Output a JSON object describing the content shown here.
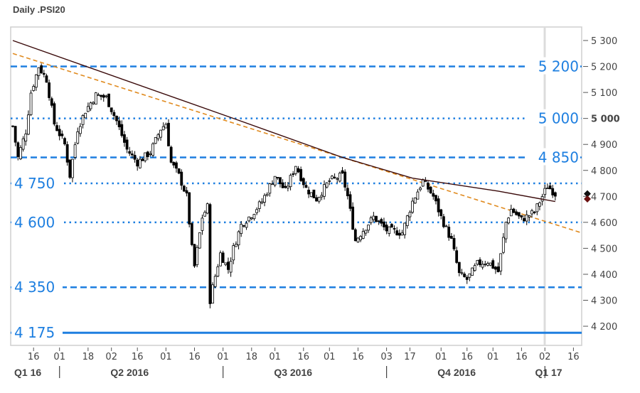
{
  "title": "Daily .PSI20",
  "chart_data": {
    "type": "candlestick",
    "title": "Daily .PSI20",
    "ylim": [
      4130,
      5340
    ],
    "y_ticks": [
      "5 300",
      "5 200",
      "5 100",
      "5 000",
      "4 900",
      "4 800",
      "4 700",
      "4 600",
      "4 500",
      "4 400",
      "4 300",
      "4 200"
    ],
    "y_tick_values": [
      5300,
      5200,
      5100,
      5000,
      4900,
      4800,
      4700,
      4600,
      4500,
      4400,
      4300,
      4200
    ],
    "highlight_tick": "5 000",
    "x_unit": "trading days from start (early Mar 2016)",
    "x_ticks": [
      {
        "label": "16",
        "day": 8
      },
      {
        "label": "01",
        "day": 18
      },
      {
        "label": "18",
        "day": 29
      },
      {
        "label": "02",
        "day": 38
      },
      {
        "label": "16",
        "day": 48
      },
      {
        "label": "01",
        "day": 59
      },
      {
        "label": "16",
        "day": 70
      },
      {
        "label": "01",
        "day": 81
      },
      {
        "label": "18",
        "day": 92
      },
      {
        "label": "01",
        "day": 101
      },
      {
        "label": "16",
        "day": 112
      },
      {
        "label": "01",
        "day": 122
      },
      {
        "label": "16",
        "day": 133
      },
      {
        "label": "03",
        "day": 144
      },
      {
        "label": "17",
        "day": 153
      },
      {
        "label": "01",
        "day": 165
      },
      {
        "label": "16",
        "day": 175
      },
      {
        "label": "01",
        "day": 185
      },
      {
        "label": "16",
        "day": 196
      },
      {
        "label": "02",
        "day": 205
      },
      {
        "label": "16",
        "day": 216
      }
    ],
    "quarters": [
      {
        "label": "Q1 16",
        "day": 3
      },
      {
        "label": "Q2 2016",
        "day": 45
      },
      {
        "label": "Q3 2016",
        "day": 108
      },
      {
        "label": "Q4 2016",
        "day": 171
      },
      {
        "label": "Q1 17",
        "day": 213
      }
    ],
    "quarter_separators": [
      18,
      81,
      144,
      205
    ],
    "close_path": [
      [
        0,
        4970
      ],
      [
        2,
        4850
      ],
      [
        5,
        4950
      ],
      [
        7,
        5100
      ],
      [
        10,
        5200
      ],
      [
        13,
        5150
      ],
      [
        16,
        4980
      ],
      [
        20,
        4900
      ],
      [
        22,
        4780
      ],
      [
        25,
        4960
      ],
      [
        28,
        5030
      ],
      [
        32,
        5090
      ],
      [
        36,
        5080
      ],
      [
        40,
        4990
      ],
      [
        44,
        4880
      ],
      [
        48,
        4830
      ],
      [
        53,
        4870
      ],
      [
        57,
        4960
      ],
      [
        59,
        4980
      ],
      [
        61,
        4830
      ],
      [
        64,
        4780
      ],
      [
        67,
        4700
      ],
      [
        69,
        4500
      ],
      [
        70,
        4430
      ],
      [
        73,
        4620
      ],
      [
        75,
        4660
      ],
      [
        76,
        4300
      ],
      [
        77,
        4350
      ],
      [
        80,
        4480
      ],
      [
        83,
        4420
      ],
      [
        85,
        4500
      ],
      [
        88,
        4590
      ],
      [
        92,
        4630
      ],
      [
        96,
        4680
      ],
      [
        101,
        4780
      ],
      [
        105,
        4720
      ],
      [
        109,
        4820
      ],
      [
        113,
        4730
      ],
      [
        117,
        4690
      ],
      [
        122,
        4760
      ],
      [
        127,
        4780
      ],
      [
        129,
        4700
      ],
      [
        132,
        4530
      ],
      [
        135,
        4570
      ],
      [
        139,
        4620
      ],
      [
        144,
        4570
      ],
      [
        150,
        4560
      ],
      [
        154,
        4680
      ],
      [
        158,
        4760
      ],
      [
        162,
        4700
      ],
      [
        165,
        4620
      ],
      [
        169,
        4530
      ],
      [
        172,
        4400
      ],
      [
        175,
        4380
      ],
      [
        179,
        4440
      ],
      [
        183,
        4450
      ],
      [
        187,
        4410
      ],
      [
        190,
        4600
      ],
      [
        192,
        4650
      ],
      [
        196,
        4610
      ],
      [
        201,
        4640
      ],
      [
        203,
        4680
      ],
      [
        206,
        4740
      ],
      [
        209,
        4710
      ]
    ],
    "moving_average": [
      [
        0,
        5300
      ],
      [
        85,
        5000
      ],
      [
        127,
        4850
      ],
      [
        154,
        4770
      ],
      [
        187,
        4720
      ],
      [
        209,
        4680
      ]
    ],
    "trendline": [
      [
        0,
        5250
      ],
      [
        219,
        4560
      ]
    ],
    "levels": [
      {
        "value": 5200,
        "label": "5 200",
        "style": "dashed",
        "side": "right"
      },
      {
        "value": 5000,
        "label": "5 000",
        "style": "dotted",
        "side": "right"
      },
      {
        "value": 4850,
        "label": "4 850",
        "style": "dashed",
        "side": "right"
      },
      {
        "value": 4750,
        "label": "4 750",
        "style": "dotted",
        "side": "left"
      },
      {
        "value": 4600,
        "label": "4 600",
        "style": "dotted",
        "side": "left"
      },
      {
        "value": 4350,
        "label": "4 350",
        "style": "dashed",
        "side": "left"
      },
      {
        "value": 4175,
        "label": "4 175",
        "style": "solid",
        "side": "left"
      }
    ],
    "markers": [
      {
        "value": 4710,
        "color": "#111111"
      },
      {
        "value": 4690,
        "color": "#6b1010"
      }
    ],
    "colors": {
      "level": "#1e7fe0",
      "ma": "#3a0a0a",
      "trend": "#e08a1e",
      "up": "#ffffff",
      "down": "#000000"
    }
  }
}
